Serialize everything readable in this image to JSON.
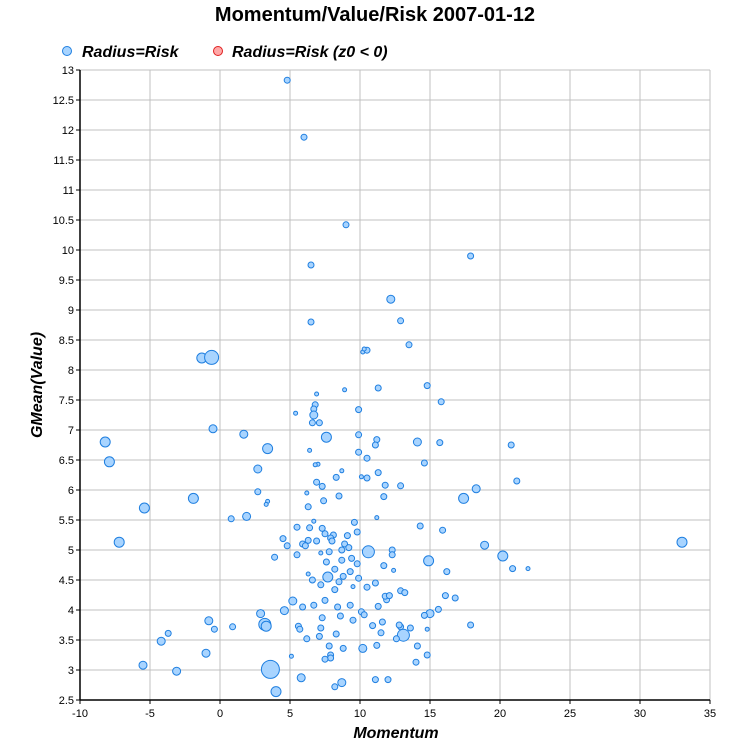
{
  "chart_data": {
    "type": "scatter",
    "title": "Momentum/Value/Risk 2007-01-12",
    "xlabel": "Momentum",
    "ylabel": "GMean(Value)",
    "xlim": [
      -10,
      35
    ],
    "ylim": [
      2.5,
      13
    ],
    "xticks": [
      "-10",
      "-5",
      "0",
      "5",
      "10",
      "15",
      "20",
      "25",
      "30",
      "35"
    ],
    "yticks": [
      "2.5",
      "3",
      "3.5",
      "4",
      "4.5",
      "5",
      "5.5",
      "6",
      "6.5",
      "7",
      "7.5",
      "8",
      "8.5",
      "9",
      "9.5",
      "10",
      "10.5",
      "11",
      "11.5",
      "12",
      "12.5",
      "13"
    ],
    "grid": true,
    "legend_position": "top",
    "legend": [
      {
        "label": "Radius=Risk",
        "fill": "#a8d4ff",
        "stroke": "#1f7fe0"
      },
      {
        "label": "Radius=Risk (z0 < 0)",
        "fill": "#ffa8a8",
        "stroke": "#e02020"
      }
    ],
    "series": [
      {
        "name": "Radius=Risk",
        "fill": "#a8d4ff",
        "stroke": "#1f7fe0",
        "points": [
          {
            "x": 4.8,
            "y": 12.83,
            "r": 3
          },
          {
            "x": 6.0,
            "y": 11.88,
            "r": 3
          },
          {
            "x": 9.0,
            "y": 10.42,
            "r": 3
          },
          {
            "x": 17.9,
            "y": 9.9,
            "r": 3
          },
          {
            "x": 6.5,
            "y": 9.75,
            "r": 3
          },
          {
            "x": 12.2,
            "y": 9.18,
            "r": 4
          },
          {
            "x": 12.9,
            "y": 8.82,
            "r": 3
          },
          {
            "x": 6.5,
            "y": 8.8,
            "r": 3
          },
          {
            "x": 13.5,
            "y": 8.42,
            "r": 3
          },
          {
            "x": 10.2,
            "y": 8.3,
            "r": 2
          },
          {
            "x": 10.5,
            "y": 8.33,
            "r": 3
          },
          {
            "x": 10.3,
            "y": 8.35,
            "r": 2
          },
          {
            "x": -1.3,
            "y": 8.2,
            "r": 5
          },
          {
            "x": -0.6,
            "y": 8.21,
            "r": 7
          },
          {
            "x": 11.3,
            "y": 7.7,
            "r": 3
          },
          {
            "x": 14.8,
            "y": 7.74,
            "r": 3
          },
          {
            "x": 8.9,
            "y": 7.67,
            "r": 2
          },
          {
            "x": 6.9,
            "y": 7.6,
            "r": 2
          },
          {
            "x": 15.8,
            "y": 7.47,
            "r": 3
          },
          {
            "x": 6.8,
            "y": 7.42,
            "r": 3
          },
          {
            "x": 6.7,
            "y": 7.35,
            "r": 3
          },
          {
            "x": 9.9,
            "y": 7.34,
            "r": 3
          },
          {
            "x": 5.4,
            "y": 7.28,
            "r": 2
          },
          {
            "x": 6.7,
            "y": 7.25,
            "r": 4
          },
          {
            "x": 6.6,
            "y": 7.12,
            "r": 3
          },
          {
            "x": 7.1,
            "y": 7.12,
            "r": 3
          },
          {
            "x": -0.5,
            "y": 7.02,
            "r": 4
          },
          {
            "x": 1.7,
            "y": 6.93,
            "r": 4
          },
          {
            "x": 9.9,
            "y": 6.92,
            "r": 3
          },
          {
            "x": 7.6,
            "y": 6.88,
            "r": 5
          },
          {
            "x": 11.2,
            "y": 6.84,
            "r": 3
          },
          {
            "x": -8.2,
            "y": 6.8,
            "r": 5
          },
          {
            "x": 14.1,
            "y": 6.8,
            "r": 4
          },
          {
            "x": 15.7,
            "y": 6.79,
            "r": 3
          },
          {
            "x": 11.1,
            "y": 6.75,
            "r": 3
          },
          {
            "x": 20.8,
            "y": 6.75,
            "r": 3
          },
          {
            "x": 3.4,
            "y": 6.69,
            "r": 5
          },
          {
            "x": 6.4,
            "y": 6.66,
            "r": 2
          },
          {
            "x": 9.9,
            "y": 6.63,
            "r": 3
          },
          {
            "x": 10.5,
            "y": 6.53,
            "r": 3
          },
          {
            "x": -7.9,
            "y": 6.47,
            "r": 5
          },
          {
            "x": 14.6,
            "y": 6.45,
            "r": 3
          },
          {
            "x": 7.0,
            "y": 6.43,
            "r": 2
          },
          {
            "x": 6.8,
            "y": 6.42,
            "r": 2
          },
          {
            "x": 2.7,
            "y": 6.35,
            "r": 4
          },
          {
            "x": 8.7,
            "y": 6.32,
            "r": 2
          },
          {
            "x": 11.3,
            "y": 6.29,
            "r": 3
          },
          {
            "x": 10.1,
            "y": 6.22,
            "r": 2
          },
          {
            "x": 8.3,
            "y": 6.21,
            "r": 3
          },
          {
            "x": 10.5,
            "y": 6.2,
            "r": 3
          },
          {
            "x": 6.9,
            "y": 6.13,
            "r": 3
          },
          {
            "x": 21.2,
            "y": 6.15,
            "r": 3
          },
          {
            "x": 11.8,
            "y": 6.08,
            "r": 3
          },
          {
            "x": 12.9,
            "y": 6.07,
            "r": 3
          },
          {
            "x": 7.3,
            "y": 6.06,
            "r": 3
          },
          {
            "x": 18.3,
            "y": 6.02,
            "r": 4
          },
          {
            "x": 2.7,
            "y": 5.97,
            "r": 3
          },
          {
            "x": 6.2,
            "y": 5.95,
            "r": 2
          },
          {
            "x": 8.5,
            "y": 5.9,
            "r": 3
          },
          {
            "x": 11.7,
            "y": 5.89,
            "r": 3
          },
          {
            "x": 17.4,
            "y": 5.86,
            "r": 5
          },
          {
            "x": -1.9,
            "y": 5.86,
            "r": 5
          },
          {
            "x": 7.4,
            "y": 5.82,
            "r": 3
          },
          {
            "x": 3.4,
            "y": 5.81,
            "r": 2
          },
          {
            "x": 3.3,
            "y": 5.76,
            "r": 2
          },
          {
            "x": 6.3,
            "y": 5.72,
            "r": 3
          },
          {
            "x": -5.4,
            "y": 5.7,
            "r": 5
          },
          {
            "x": 1.9,
            "y": 5.56,
            "r": 4
          },
          {
            "x": 0.8,
            "y": 5.52,
            "r": 3
          },
          {
            "x": 11.2,
            "y": 5.54,
            "r": 2
          },
          {
            "x": 6.7,
            "y": 5.48,
            "r": 2
          },
          {
            "x": 9.6,
            "y": 5.46,
            "r": 3
          },
          {
            "x": 14.3,
            "y": 5.4,
            "r": 3
          },
          {
            "x": 5.5,
            "y": 5.38,
            "r": 3
          },
          {
            "x": 6.4,
            "y": 5.37,
            "r": 3
          },
          {
            "x": 7.3,
            "y": 5.36,
            "r": 3
          },
          {
            "x": 15.9,
            "y": 5.33,
            "r": 3
          },
          {
            "x": 9.8,
            "y": 5.3,
            "r": 3
          },
          {
            "x": 7.5,
            "y": 5.27,
            "r": 3
          },
          {
            "x": 8.1,
            "y": 5.25,
            "r": 3
          },
          {
            "x": 9.1,
            "y": 5.24,
            "r": 3
          },
          {
            "x": 4.5,
            "y": 5.19,
            "r": 3
          },
          {
            "x": 7.9,
            "y": 5.2,
            "r": 3
          },
          {
            "x": 6.3,
            "y": 5.16,
            "r": 3
          },
          {
            "x": 8.0,
            "y": 5.15,
            "r": 3
          },
          {
            "x": 6.9,
            "y": 5.15,
            "r": 3
          },
          {
            "x": -7.2,
            "y": 5.13,
            "r": 5
          },
          {
            "x": 33.0,
            "y": 5.13,
            "r": 5
          },
          {
            "x": 5.9,
            "y": 5.1,
            "r": 3
          },
          {
            "x": 8.9,
            "y": 5.1,
            "r": 3
          },
          {
            "x": 18.9,
            "y": 5.08,
            "r": 4
          },
          {
            "x": 4.8,
            "y": 5.07,
            "r": 3
          },
          {
            "x": 6.1,
            "y": 5.07,
            "r": 3
          },
          {
            "x": 9.2,
            "y": 5.04,
            "r": 3
          },
          {
            "x": 12.3,
            "y": 5.0,
            "r": 3
          },
          {
            "x": 8.7,
            "y": 5.0,
            "r": 3
          },
          {
            "x": 10.6,
            "y": 4.97,
            "r": 6
          },
          {
            "x": 7.8,
            "y": 4.97,
            "r": 3
          },
          {
            "x": 7.2,
            "y": 4.95,
            "r": 2
          },
          {
            "x": 20.2,
            "y": 4.9,
            "r": 5
          },
          {
            "x": 5.5,
            "y": 4.92,
            "r": 3
          },
          {
            "x": 12.3,
            "y": 4.92,
            "r": 3
          },
          {
            "x": 3.9,
            "y": 4.88,
            "r": 3
          },
          {
            "x": 9.4,
            "y": 4.86,
            "r": 3
          },
          {
            "x": 8.7,
            "y": 4.83,
            "r": 3
          },
          {
            "x": 14.9,
            "y": 4.82,
            "r": 5
          },
          {
            "x": 7.6,
            "y": 4.8,
            "r": 3
          },
          {
            "x": 9.8,
            "y": 4.77,
            "r": 3
          },
          {
            "x": 11.7,
            "y": 4.74,
            "r": 3
          },
          {
            "x": 20.9,
            "y": 4.69,
            "r": 3
          },
          {
            "x": 22.0,
            "y": 4.69,
            "r": 2
          },
          {
            "x": 8.2,
            "y": 4.68,
            "r": 3
          },
          {
            "x": 12.4,
            "y": 4.66,
            "r": 2
          },
          {
            "x": 9.3,
            "y": 4.64,
            "r": 3
          },
          {
            "x": 16.2,
            "y": 4.64,
            "r": 3
          },
          {
            "x": 6.3,
            "y": 4.6,
            "r": 2
          },
          {
            "x": 7.7,
            "y": 4.55,
            "r": 5
          },
          {
            "x": 8.8,
            "y": 4.56,
            "r": 3
          },
          {
            "x": 9.9,
            "y": 4.53,
            "r": 3
          },
          {
            "x": 6.6,
            "y": 4.5,
            "r": 3
          },
          {
            "x": 8.5,
            "y": 4.47,
            "r": 3
          },
          {
            "x": 11.1,
            "y": 4.45,
            "r": 3
          },
          {
            "x": 7.2,
            "y": 4.42,
            "r": 3
          },
          {
            "x": 9.5,
            "y": 4.39,
            "r": 2
          },
          {
            "x": 10.5,
            "y": 4.38,
            "r": 3
          },
          {
            "x": 8.2,
            "y": 4.34,
            "r": 3
          },
          {
            "x": 12.9,
            "y": 4.32,
            "r": 3
          },
          {
            "x": 13.2,
            "y": 4.29,
            "r": 3
          },
          {
            "x": 16.8,
            "y": 4.2,
            "r": 3
          },
          {
            "x": 5.2,
            "y": 4.15,
            "r": 4
          },
          {
            "x": 7.5,
            "y": 4.16,
            "r": 3
          },
          {
            "x": 16.1,
            "y": 4.24,
            "r": 3
          },
          {
            "x": 11.3,
            "y": 4.06,
            "r": 3
          },
          {
            "x": 9.3,
            "y": 4.08,
            "r": 3
          },
          {
            "x": 11.9,
            "y": 4.17,
            "r": 3
          },
          {
            "x": 5.9,
            "y": 4.05,
            "r": 3
          },
          {
            "x": 6.7,
            "y": 4.08,
            "r": 3
          },
          {
            "x": 11.8,
            "y": 4.23,
            "r": 3
          },
          {
            "x": 12.1,
            "y": 4.24,
            "r": 3
          },
          {
            "x": 4.6,
            "y": 3.99,
            "r": 4
          },
          {
            "x": 8.4,
            "y": 4.05,
            "r": 3
          },
          {
            "x": 10.1,
            "y": 3.97,
            "r": 3
          },
          {
            "x": 15.6,
            "y": 4.01,
            "r": 3
          },
          {
            "x": 2.9,
            "y": 3.94,
            "r": 4
          },
          {
            "x": 10.3,
            "y": 3.92,
            "r": 3
          },
          {
            "x": 15.0,
            "y": 3.94,
            "r": 4
          },
          {
            "x": 8.6,
            "y": 3.9,
            "r": 3
          },
          {
            "x": 7.3,
            "y": 3.87,
            "r": 3
          },
          {
            "x": 14.6,
            "y": 3.91,
            "r": 3
          },
          {
            "x": -0.8,
            "y": 3.82,
            "r": 4
          },
          {
            "x": 9.5,
            "y": 3.83,
            "r": 3
          },
          {
            "x": 11.6,
            "y": 3.8,
            "r": 3
          },
          {
            "x": 3.2,
            "y": 3.76,
            "r": 6
          },
          {
            "x": 3.3,
            "y": 3.73,
            "r": 5
          },
          {
            "x": 5.6,
            "y": 3.73,
            "r": 3
          },
          {
            "x": 12.9,
            "y": 3.72,
            "r": 3
          },
          {
            "x": 10.9,
            "y": 3.74,
            "r": 3
          },
          {
            "x": 12.8,
            "y": 3.75,
            "r": 3
          },
          {
            "x": 17.9,
            "y": 3.75,
            "r": 3
          },
          {
            "x": 0.9,
            "y": 3.72,
            "r": 3
          },
          {
            "x": -0.4,
            "y": 3.68,
            "r": 3
          },
          {
            "x": 5.7,
            "y": 3.68,
            "r": 3
          },
          {
            "x": 7.2,
            "y": 3.7,
            "r": 3
          },
          {
            "x": 13.6,
            "y": 3.7,
            "r": 3
          },
          {
            "x": 14.8,
            "y": 3.68,
            "r": 2
          },
          {
            "x": 11.5,
            "y": 3.62,
            "r": 3
          },
          {
            "x": 8.3,
            "y": 3.6,
            "r": 3
          },
          {
            "x": -3.7,
            "y": 3.61,
            "r": 3
          },
          {
            "x": 13.1,
            "y": 3.58,
            "r": 6
          },
          {
            "x": 12.6,
            "y": 3.52,
            "r": 3
          },
          {
            "x": 6.2,
            "y": 3.52,
            "r": 3
          },
          {
            "x": 7.1,
            "y": 3.56,
            "r": 3
          },
          {
            "x": -4.2,
            "y": 3.48,
            "r": 4
          },
          {
            "x": 11.2,
            "y": 3.41,
            "r": 3
          },
          {
            "x": 14.1,
            "y": 3.4,
            "r": 3
          },
          {
            "x": 7.8,
            "y": 3.4,
            "r": 3
          },
          {
            "x": 8.8,
            "y": 3.36,
            "r": 3
          },
          {
            "x": 10.2,
            "y": 3.36,
            "r": 4
          },
          {
            "x": -1.0,
            "y": 3.28,
            "r": 4
          },
          {
            "x": 14.8,
            "y": 3.25,
            "r": 3
          },
          {
            "x": 7.9,
            "y": 3.25,
            "r": 3
          },
          {
            "x": 5.1,
            "y": 3.23,
            "r": 2
          },
          {
            "x": 7.9,
            "y": 3.2,
            "r": 3
          },
          {
            "x": 7.5,
            "y": 3.18,
            "r": 3
          },
          {
            "x": 14.0,
            "y": 3.13,
            "r": 3
          },
          {
            "x": -5.5,
            "y": 3.08,
            "r": 4
          },
          {
            "x": -3.1,
            "y": 2.98,
            "r": 4
          },
          {
            "x": 3.6,
            "y": 3.01,
            "r": 9
          },
          {
            "x": 5.8,
            "y": 2.87,
            "r": 4
          },
          {
            "x": 11.1,
            "y": 2.84,
            "r": 3
          },
          {
            "x": 12.0,
            "y": 2.84,
            "r": 3
          },
          {
            "x": 8.7,
            "y": 2.79,
            "r": 4
          },
          {
            "x": 8.2,
            "y": 2.72,
            "r": 3
          },
          {
            "x": 4.0,
            "y": 2.64,
            "r": 5
          }
        ]
      }
    ]
  }
}
